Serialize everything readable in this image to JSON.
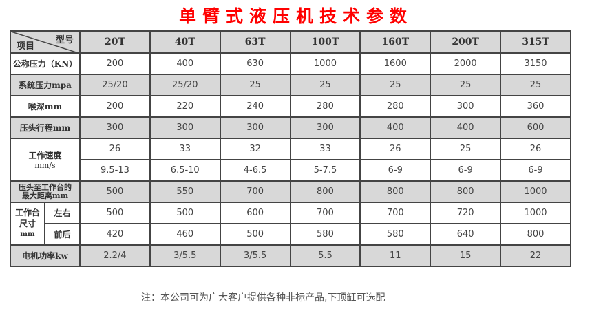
{
  "title": "单臂式液压机技术参数",
  "header": {
    "row_label": "项目",
    "col_label": "型号",
    "models": [
      "20T",
      "40T",
      "63T",
      "100T",
      "160T",
      "200T",
      "315T"
    ]
  },
  "rows": {
    "nominal_force": {
      "label": "公称压力（KN）",
      "values": [
        "200",
        "400",
        "630",
        "1000",
        "1600",
        "2000",
        "3150"
      ]
    },
    "system_pressure": {
      "label": "系统压力mpa",
      "values": [
        "25/20",
        "25/20",
        "25",
        "25",
        "25",
        "25",
        "25"
      ]
    },
    "throat_depth": {
      "label": "喉深mm",
      "values": [
        "200",
        "220",
        "240",
        "280",
        "280",
        "300",
        "360"
      ]
    },
    "ram_stroke": {
      "label": "压头行程mm",
      "values": [
        "300",
        "300",
        "300",
        "300",
        "400",
        "400",
        "600"
      ]
    },
    "working_speed": {
      "label": "工作速度",
      "unit": "mm/s",
      "values": [
        "26",
        "33",
        "32",
        "33",
        "26",
        "25",
        "26"
      ],
      "values2": [
        "9.5-13",
        "6.5-10",
        "4-6.5",
        "5-7.5",
        "6-9",
        "6-9",
        "6-9"
      ]
    },
    "max_distance": {
      "label_line1": "压头至工作台的",
      "label_line2": "最大距离mm",
      "values": [
        "500",
        "550",
        "700",
        "800",
        "800",
        "800",
        "1000"
      ]
    },
    "table_size": {
      "label_line1": "工作台",
      "label_line2": "尺寸",
      "label_line3": "mm",
      "lr_label": "左右",
      "lr_values": [
        "500",
        "500",
        "600",
        "700",
        "700",
        "720",
        "1000"
      ],
      "fb_label": "前后",
      "fb_values": [
        "420",
        "460",
        "500",
        "580",
        "580",
        "640",
        "800"
      ]
    },
    "motor_power": {
      "label": "电机功率kw",
      "values": [
        "2.2/4",
        "3/5.5",
        "3/5.5",
        "5.5",
        "11",
        "15",
        "22"
      ]
    }
  },
  "note": "注：本公司可为广大客户提供各种非标产品,下顶缸可选配"
}
